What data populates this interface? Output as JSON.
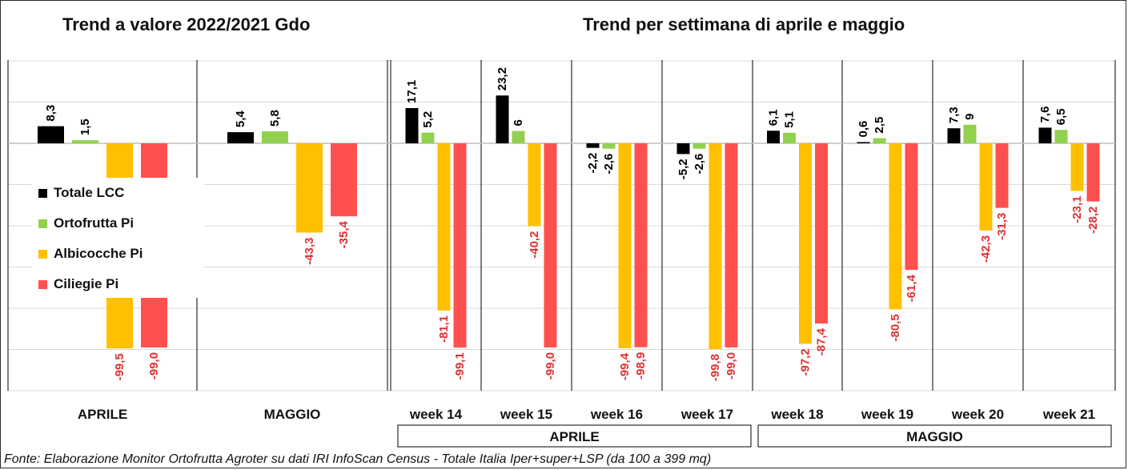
{
  "titles": {
    "left": "Trend a valore 2022/2021 Gdo",
    "right": "Trend per settimana di aprile e maggio"
  },
  "footnote": "Fonte: Elaborazione Monitor Ortofrutta Agroter su dati IRI InfoScan Census - Totale Italia Iper+super+LSP (da 100 a 399 mq)",
  "colors": {
    "Totale LCC": "#000000",
    "Ortofrutta Pi": "#92d050",
    "Albicocche Pi": "#ffc000",
    "Ciliegie Pi": "#ff5050"
  },
  "legend": [
    {
      "label": "Totale LCC",
      "color": "#000000"
    },
    {
      "label": "Ortofrutta Pi",
      "color": "#92d050"
    },
    {
      "label": "Albicocche Pi",
      "color": "#ffc000"
    },
    {
      "label": "Ciliegie Pi",
      "color": "#ff5050"
    }
  ],
  "chart_data": {
    "type": "bar",
    "categories": [
      "APRILE",
      "MAGGIO",
      "week 14",
      "week 15",
      "week 16",
      "week 17",
      "week 18",
      "week 19",
      "week 20",
      "week 21"
    ],
    "series": [
      {
        "name": "Totale LCC",
        "values": [
          8.3,
          5.4,
          17.1,
          23.2,
          -2.2,
          -5.2,
          6.1,
          0.6,
          7.3,
          7.6
        ]
      },
      {
        "name": "Ortofrutta Pi",
        "values": [
          1.5,
          5.8,
          5.2,
          6,
          -2.6,
          -2.6,
          5.1,
          2.5,
          9,
          6.5
        ]
      },
      {
        "name": "Albicocche Pi",
        "values": [
          -99.5,
          -43.3,
          -81.1,
          -40.2,
          -99.4,
          -99.8,
          -97.2,
          -80.5,
          -42.3,
          -23.1
        ]
      },
      {
        "name": "Ciliegie Pi",
        "values": [
          -99.0,
          -35.4,
          -99.1,
          -99.0,
          -98.9,
          -99.0,
          -87.4,
          -61.4,
          -31.3,
          -28.2
        ]
      }
    ],
    "data_labels": [
      [
        "8,3",
        "5,4",
        "17,1",
        "23,2",
        "-2,2",
        "-5,2",
        "6,1",
        "0,6",
        "7,3",
        "7,6"
      ],
      [
        "1,5",
        "5,8",
        "5,2",
        "6",
        "-2,6",
        "-2,6",
        "5,1",
        "2,5",
        "9",
        "6,5"
      ],
      [
        "-99,5",
        "-43,3",
        "-81,1",
        "-40,2",
        "-99,4",
        "-99,8",
        "-97,2",
        "-80,5",
        "-42,3",
        "-23,1"
      ],
      [
        "-99,0",
        "-35,4",
        "-99,1",
        "-99,0",
        "-98,9",
        "-99,0",
        "-87,4",
        "-61,4",
        "-31,3",
        "-28,2"
      ]
    ],
    "groups": [
      {
        "label": "APRILE",
        "categories": [
          "week 14",
          "week 15",
          "week 16",
          "week 17"
        ]
      },
      {
        "label": "MAGGIO",
        "categories": [
          "week 18",
          "week 19",
          "week 20",
          "week 21"
        ]
      }
    ],
    "ylim": [
      -120,
      40
    ],
    "grid": true,
    "legend_position": "left"
  }
}
